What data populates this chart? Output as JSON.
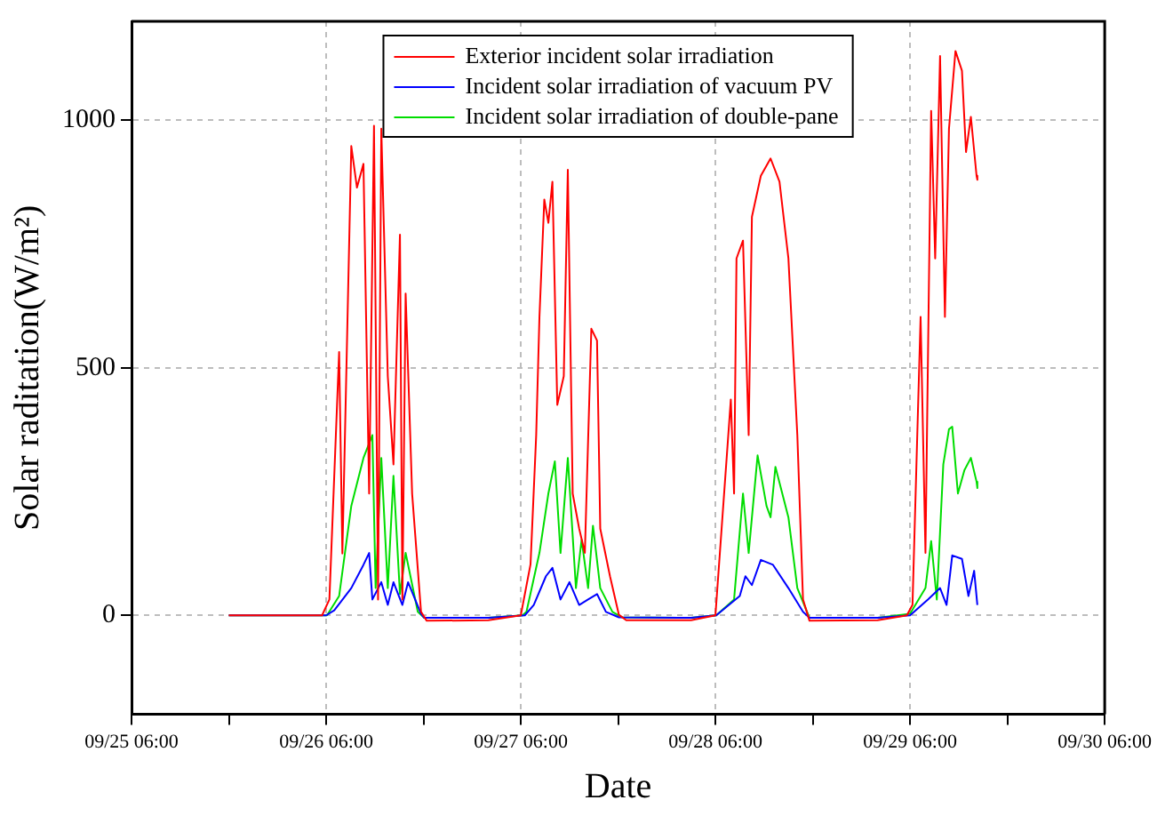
{
  "chart_data": {
    "type": "line",
    "xlabel": "Date",
    "ylabel": "Solar raditation(W/m²)",
    "xlim": [
      "--09-25T06:00",
      "--09-30T06:00"
    ],
    "xticks": [
      {
        "value": "--09-25T06:00",
        "label": "09/25 06:00"
      },
      {
        "value": "--09-25T18:00",
        "label": null
      },
      {
        "value": "--09-26T06:00",
        "label": "09/26 06:00"
      },
      {
        "value": "--09-26T18:00",
        "label": null
      },
      {
        "value": "--09-27T06:00",
        "label": "09/27 06:00"
      },
      {
        "value": "--09-27T18:00",
        "label": null
      },
      {
        "value": "--09-28T06:00",
        "label": "09/28 06:00"
      },
      {
        "value": "--09-28T18:00",
        "label": null
      },
      {
        "value": "--09-29T06:00",
        "label": "09/29 06:00"
      },
      {
        "value": "--09-29T18:00",
        "label": null
      },
      {
        "value": "--09-30T06:00",
        "label": "09/30 06:00"
      }
    ],
    "ylim": [
      -200,
      1200
    ],
    "yticks": [
      0,
      500,
      1000
    ],
    "grid": true,
    "legend": "top",
    "marker": "none",
    "line_style": "solid",
    "series": [
      {
        "name": "Exterior incident solar irradiation",
        "color": "#ff0000",
        "x": [
          "--09-25T18:00",
          "--09-26T05:30",
          "--09-26T06:24",
          "--09-26T07:36",
          "--09-26T08:00",
          "--09-26T09:06",
          "--09-26T09:48",
          "--09-26T10:36",
          "--09-26T11:18",
          "--09-26T11:54",
          "--09-26T12:24",
          "--09-26T12:48",
          "--09-26T13:36",
          "--09-26T14:18",
          "--09-26T15:06",
          "--09-26T15:24",
          "--09-26T15:48",
          "--09-26T16:36",
          "--09-26T17:42",
          "--09-26T18:24",
          "--09-27T02:00",
          "--09-27T06:00",
          "--09-27T07:12",
          "--09-27T07:54",
          "--09-27T08:18",
          "--09-27T08:54",
          "--09-27T09:24",
          "--09-27T09:54",
          "--09-27T10:30",
          "--09-27T11:18",
          "--09-27T11:48",
          "--09-27T12:24",
          "--09-27T13:12",
          "--09-27T13:54",
          "--09-27T14:42",
          "--09-27T15:24",
          "--09-27T15:48",
          "--09-27T17:00",
          "--09-27T18:06",
          "--09-27T19:00",
          "--09-28T03:00",
          "--09-28T06:00",
          "--09-28T07:54",
          "--09-28T08:18",
          "--09-28T08:36",
          "--09-28T09:24",
          "--09-28T10:06",
          "--09-28T10:30",
          "--09-28T11:36",
          "--09-28T12:48",
          "--09-28T13:54",
          "--09-28T15:00",
          "--09-28T16:06",
          "--09-28T16:48",
          "--09-28T17:36",
          "--09-29T02:00",
          "--09-29T05:36",
          "--09-29T06:18",
          "--09-29T07:18",
          "--09-29T07:54",
          "--09-29T08:36",
          "--09-29T09:06",
          "--09-29T09:42",
          "--09-29T10:18",
          "--09-29T10:48",
          "--09-29T11:36",
          "--09-29T12:24",
          "--09-29T12:54",
          "--09-29T13:30",
          "--09-29T14:12",
          "--09-29T14:18"
        ],
        "values": [
          0,
          0,
          32,
          532,
          125,
          948,
          864,
          912,
          246,
          989,
          32,
          983,
          483,
          305,
          769,
          32,
          650,
          246,
          7,
          -11,
          -10,
          0,
          103,
          364,
          603,
          840,
          793,
          876,
          425,
          483,
          900,
          246,
          175,
          126,
          579,
          555,
          175,
          79,
          1,
          -10,
          -10,
          0,
          436,
          246,
          721,
          757,
          364,
          805,
          888,
          923,
          876,
          721,
          364,
          32,
          -11,
          -10,
          0,
          21,
          603,
          126,
          1019,
          721,
          1130,
          603,
          983,
          1140,
          1100,
          936,
          1007,
          888,
          880
        ]
      },
      {
        "name": "Incident solar irradiation of vacuum PV",
        "color": "#0000ff",
        "x": [
          "--09-25T18:00",
          "--09-26T06:00",
          "--09-26T07:00",
          "--09-26T09:06",
          "--09-26T10:36",
          "--09-26T11:18",
          "--09-26T11:42",
          "--09-26T12:48",
          "--09-26T13:36",
          "--09-26T14:18",
          "--09-26T15:24",
          "--09-26T16:06",
          "--09-26T17:42",
          "--09-26T18:06",
          "--09-27T02:00",
          "--09-27T06:30",
          "--09-27T07:36",
          "--09-27T09:06",
          "--09-27T09:54",
          "--09-27T10:54",
          "--09-27T12:00",
          "--09-27T13:12",
          "--09-27T14:18",
          "--09-27T15:24",
          "--09-27T16:30",
          "--09-27T18:06",
          "--09-28T03:00",
          "--09-28T06:06",
          "--09-28T09:00",
          "--09-28T09:42",
          "--09-28T10:30",
          "--09-28T11:36",
          "--09-28T13:06",
          "--09-28T15:00",
          "--09-28T16:48",
          "--09-28T17:36",
          "--09-29T02:00",
          "--09-29T06:00",
          "--09-29T08:12",
          "--09-29T09:42",
          "--09-29T10:30",
          "--09-29T11:12",
          "--09-29T12:24",
          "--09-29T13:12",
          "--09-29T13:54",
          "--09-29T14:18"
        ],
        "values": [
          0,
          0,
          10,
          55,
          102,
          126,
          32,
          67,
          21,
          67,
          21,
          67,
          3,
          -5,
          -5,
          0,
          21,
          79,
          96,
          32,
          67,
          21,
          32,
          43,
          7,
          -4,
          -5,
          0,
          39,
          79,
          61,
          112,
          102,
          55,
          7,
          -5,
          -5,
          0,
          32,
          55,
          21,
          121,
          114,
          39,
          90,
          21
        ]
      },
      {
        "name": "Incident solar irradiation of double-pane",
        "color": "#00dd00",
        "x": [
          "--09-25T18:00",
          "--09-26T06:06",
          "--09-26T07:36",
          "--09-26T09:06",
          "--09-26T10:36",
          "--09-26T11:42",
          "--09-26T12:06",
          "--09-26T12:48",
          "--09-26T13:36",
          "--09-26T14:18",
          "--09-26T15:06",
          "--09-26T15:48",
          "--09-26T17:18",
          "--09-26T18:06",
          "--09-27T02:00",
          "--09-27T06:12",
          "--09-27T06:42",
          "--09-27T08:18",
          "--09-27T09:24",
          "--09-27T10:12",
          "--09-27T10:54",
          "--09-27T11:48",
          "--09-27T12:48",
          "--09-27T13:30",
          "--09-27T14:18",
          "--09-27T14:54",
          "--09-27T15:48",
          "--09-27T17:18",
          "--09-27T18:30",
          "--09-28T03:00",
          "--09-28T06:06",
          "--09-28T08:18",
          "--09-28T09:24",
          "--09-28T10:06",
          "--09-28T11:12",
          "--09-28T12:18",
          "--09-28T12:48",
          "--09-28T13:24",
          "--09-28T15:00",
          "--09-28T16:06",
          "--09-28T17:36",
          "--09-29T02:00",
          "--09-29T06:00",
          "--09-29T07:54",
          "--09-29T08:36",
          "--09-29T09:18",
          "--09-29T10:06",
          "--09-29T10:48",
          "--09-29T11:12",
          "--09-29T11:54",
          "--09-29T12:42",
          "--09-29T13:30",
          "--09-29T14:12",
          "--09-29T14:18"
        ],
        "values": [
          0,
          0,
          39,
          221,
          318,
          364,
          55,
          318,
          55,
          282,
          43,
          126,
          7,
          -5,
          -5,
          0,
          7,
          126,
          246,
          311,
          126,
          318,
          55,
          153,
          55,
          181,
          55,
          7,
          -4,
          -5,
          0,
          32,
          246,
          126,
          323,
          221,
          198,
          300,
          198,
          55,
          -5,
          -5,
          3,
          55,
          150,
          32,
          305,
          376,
          381,
          246,
          293,
          318,
          270,
          257
        ]
      }
    ]
  }
}
